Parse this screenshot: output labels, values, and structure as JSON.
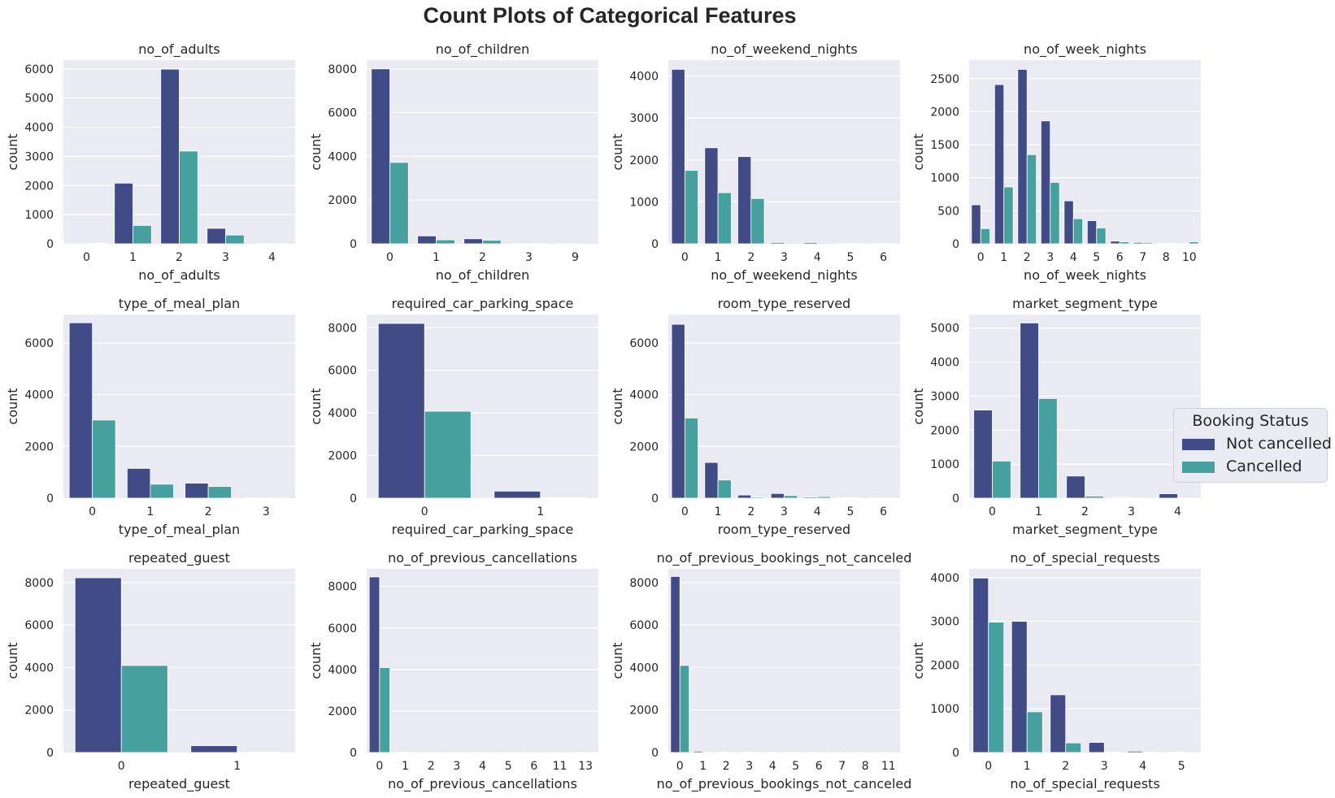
{
  "figure": {
    "title": "Count Plots of Categorical Features"
  },
  "colors": {
    "not_cancelled": "#414c87",
    "cancelled": "#46a09e",
    "axes_bg": "#eaeaf2",
    "grid": "#ffffff"
  },
  "legend": {
    "title": "Booking Status",
    "location": "center-right",
    "entries": [
      {
        "label": "Not cancelled",
        "color": "#414c87"
      },
      {
        "label": "Cancelled",
        "color": "#46a09e"
      }
    ]
  },
  "chart_data": [
    {
      "type": "bar",
      "title": "no_of_adults",
      "xlabel": "no_of_adults",
      "ylabel": "count",
      "categories": [
        "0",
        "1",
        "2",
        "3",
        "4"
      ],
      "ylim": [
        0,
        6300
      ],
      "yticks": [
        0,
        1000,
        2000,
        3000,
        4000,
        5000,
        6000
      ],
      "series": [
        {
          "name": "Not cancelled",
          "values": [
            25,
            2080,
            5990,
            530,
            5
          ]
        },
        {
          "name": "Cancelled",
          "values": [
            20,
            630,
            3180,
            300,
            3
          ]
        }
      ]
    },
    {
      "type": "bar",
      "title": "no_of_children",
      "xlabel": "no_of_children",
      "ylabel": "count",
      "categories": [
        "0",
        "1",
        "2",
        "3",
        "9"
      ],
      "ylim": [
        0,
        8400
      ],
      "yticks": [
        0,
        2000,
        4000,
        6000,
        8000
      ],
      "series": [
        {
          "name": "Not cancelled",
          "values": [
            8000,
            360,
            230,
            5,
            1
          ]
        },
        {
          "name": "Cancelled",
          "values": [
            3720,
            180,
            160,
            5,
            0
          ]
        }
      ]
    },
    {
      "type": "bar",
      "title": "no_of_weekend_nights",
      "xlabel": "no_of_weekend_nights",
      "ylabel": "count",
      "categories": [
        "0",
        "1",
        "2",
        "3",
        "4",
        "5",
        "6"
      ],
      "ylim": [
        0,
        4380
      ],
      "yticks": [
        0,
        1000,
        2000,
        3000,
        4000
      ],
      "series": [
        {
          "name": "Not cancelled",
          "values": [
            4160,
            2290,
            2080,
            30,
            30,
            5,
            5
          ]
        },
        {
          "name": "Cancelled",
          "values": [
            1750,
            1220,
            1080,
            20,
            20,
            5,
            5
          ]
        }
      ]
    },
    {
      "type": "bar",
      "title": "no_of_week_nights",
      "xlabel": "no_of_week_nights",
      "ylabel": "count",
      "categories": [
        "0",
        "1",
        "2",
        "3",
        "4",
        "5",
        "6",
        "7",
        "8",
        "10"
      ],
      "ylim": [
        0,
        2780
      ],
      "yticks": [
        0,
        500,
        1000,
        1500,
        2000,
        2500
      ],
      "series": [
        {
          "name": "Not cancelled",
          "values": [
            590,
            2410,
            2640,
            1860,
            650,
            350,
            40,
            20,
            10,
            5
          ]
        },
        {
          "name": "Cancelled",
          "values": [
            230,
            860,
            1350,
            930,
            380,
            240,
            30,
            20,
            10,
            30
          ]
        }
      ]
    },
    {
      "type": "bar",
      "title": "type_of_meal_plan",
      "xlabel": "type_of_meal_plan",
      "ylabel": "count",
      "categories": [
        "0",
        "1",
        "2",
        "3"
      ],
      "ylim": [
        0,
        7100
      ],
      "yticks": [
        0,
        2000,
        4000,
        6000
      ],
      "series": [
        {
          "name": "Not cancelled",
          "values": [
            6780,
            1150,
            580,
            5
          ]
        },
        {
          "name": "Cancelled",
          "values": [
            3020,
            540,
            450,
            3
          ]
        }
      ]
    },
    {
      "type": "bar",
      "title": "required_car_parking_space",
      "xlabel": "required_car_parking_space",
      "ylabel": "count",
      "categories": [
        "0",
        "1"
      ],
      "ylim": [
        0,
        8620
      ],
      "yticks": [
        0,
        2000,
        4000,
        6000,
        8000
      ],
      "series": [
        {
          "name": "Not cancelled",
          "values": [
            8200,
            330
          ]
        },
        {
          "name": "Cancelled",
          "values": [
            4080,
            20
          ]
        }
      ]
    },
    {
      "type": "bar",
      "title": "room_type_reserved",
      "xlabel": "room_type_reserved",
      "ylabel": "count",
      "categories": [
        "0",
        "1",
        "2",
        "3",
        "4",
        "5",
        "6"
      ],
      "ylim": [
        0,
        7100
      ],
      "yticks": [
        0,
        2000,
        4000,
        6000
      ],
      "series": [
        {
          "name": "Not cancelled",
          "values": [
            6720,
            1380,
            120,
            180,
            40,
            20,
            10
          ]
        },
        {
          "name": "Cancelled",
          "values": [
            3100,
            700,
            40,
            100,
            60,
            10,
            5
          ]
        }
      ]
    },
    {
      "type": "bar",
      "title": "market_segment_type",
      "xlabel": "market_segment_type",
      "ylabel": "count",
      "categories": [
        "0",
        "1",
        "2",
        "3",
        "4"
      ],
      "ylim": [
        0,
        5400
      ],
      "yticks": [
        0,
        1000,
        2000,
        3000,
        4000,
        5000
      ],
      "series": [
        {
          "name": "Not cancelled",
          "values": [
            2590,
            5150,
            650,
            20,
            130
          ]
        },
        {
          "name": "Cancelled",
          "values": [
            1090,
            2930,
            60,
            5,
            5
          ]
        }
      ]
    },
    {
      "type": "bar",
      "title": "repeated_guest",
      "xlabel": "repeated_guest",
      "ylabel": "count",
      "categories": [
        "0",
        "1"
      ],
      "ylim": [
        0,
        8650
      ],
      "yticks": [
        0,
        2000,
        4000,
        6000,
        8000
      ],
      "series": [
        {
          "name": "Not cancelled",
          "values": [
            8230,
            320
          ]
        },
        {
          "name": "Cancelled",
          "values": [
            4100,
            10
          ]
        }
      ]
    },
    {
      "type": "bar",
      "title": "no_of_previous_cancellations",
      "xlabel": "no_of_previous_cancellations",
      "ylabel": "count",
      "categories": [
        "0",
        "1",
        "2",
        "3",
        "4",
        "5",
        "6",
        "11",
        "13"
      ],
      "ylim": [
        0,
        8850
      ],
      "yticks": [
        0,
        2000,
        4000,
        6000,
        8000
      ],
      "series": [
        {
          "name": "Not cancelled",
          "values": [
            8460,
            10,
            5,
            5,
            3,
            3,
            1,
            1,
            1
          ]
        },
        {
          "name": "Cancelled",
          "values": [
            4090,
            3,
            2,
            1,
            1,
            1,
            0,
            0,
            1
          ]
        }
      ]
    },
    {
      "type": "bar",
      "title": "no_of_previous_bookings_not_canceled",
      "xlabel": "no_of_previous_bookings_not_canceled",
      "ylabel": "count",
      "categories": [
        "0",
        "1",
        "2",
        "3",
        "4",
        "5",
        "6",
        "7",
        "8",
        "11"
      ],
      "ylim": [
        0,
        8650
      ],
      "yticks": [
        0,
        2000,
        4000,
        6000,
        8000
      ],
      "series": [
        {
          "name": "Not cancelled",
          "values": [
            8290,
            60,
            30,
            15,
            10,
            8,
            5,
            5,
            3,
            1
          ]
        },
        {
          "name": "Cancelled",
          "values": [
            4100,
            10,
            5,
            3,
            2,
            1,
            1,
            0,
            0,
            0
          ]
        }
      ]
    },
    {
      "type": "bar",
      "title": "no_of_special_requests",
      "xlabel": "no_of_special_requests",
      "ylabel": "count",
      "categories": [
        "0",
        "1",
        "2",
        "3",
        "4",
        "5"
      ],
      "ylim": [
        0,
        4200
      ],
      "yticks": [
        0,
        1000,
        2000,
        3000,
        4000
      ],
      "series": [
        {
          "name": "Not cancelled",
          "values": [
            3990,
            3000,
            1320,
            230,
            30,
            5
          ]
        },
        {
          "name": "Cancelled",
          "values": [
            2980,
            930,
            220,
            10,
            5,
            1
          ]
        }
      ]
    }
  ]
}
